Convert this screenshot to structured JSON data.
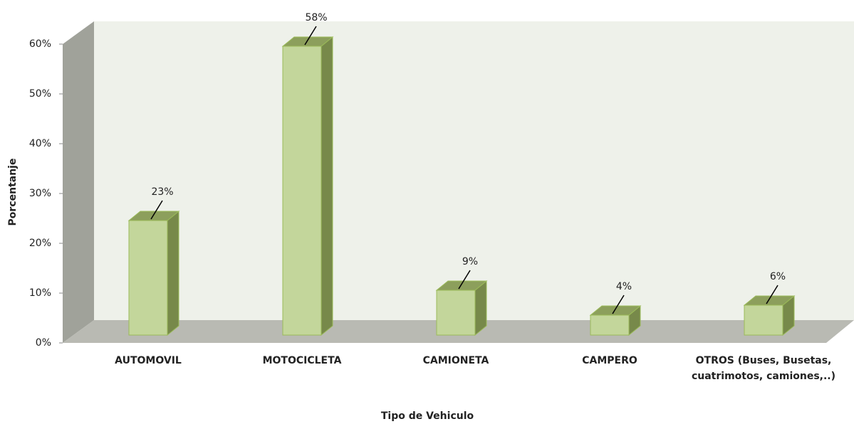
{
  "chart_data": {
    "type": "bar3d",
    "x_label": "Tipo de Vehiculo",
    "y_label": "Porcentanje",
    "categories": [
      "AUTOMOVIL",
      "MOTOCICLETA",
      "CAMIONETA",
      "CAMPERO",
      "OTROS (Buses, Busetas, cuatrimotos, camiones,..)"
    ],
    "values": [
      23,
      58,
      9,
      4,
      6
    ],
    "value_labels": [
      "23%",
      "58%",
      "9%",
      "4%",
      "6%"
    ],
    "color": "#c3d69b",
    "ylim": [
      0,
      60
    ],
    "yticks": [
      {
        "value": 0,
        "label": "0%"
      },
      {
        "value": 10,
        "label": "10%"
      },
      {
        "value": 20,
        "label": "20%"
      },
      {
        "value": 30,
        "label": "30%"
      },
      {
        "value": 40,
        "label": "40%"
      },
      {
        "value": 50,
        "label": "50%"
      },
      {
        "value": 60,
        "label": "60%"
      }
    ]
  }
}
